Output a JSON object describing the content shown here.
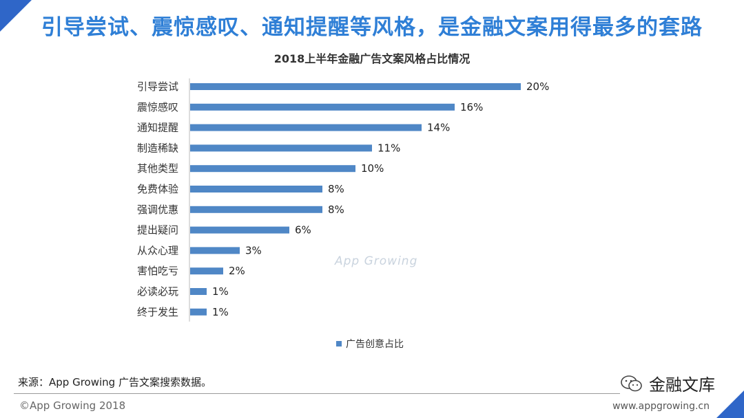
{
  "headline": "引导尝试、震惊感叹、通知提醒等风格，是金融文案用得最多的套路",
  "watermark": "App Growing",
  "source_note": "来源：App Growing 广告文案搜索数据。",
  "footer": {
    "copyright": "©App Growing 2018",
    "url": "www.appgrowing.cn"
  },
  "brand": {
    "name": "金融文库",
    "icon": "wechat-icon"
  },
  "colors": {
    "accent": "#2f66c8",
    "bar": "#4f87c6",
    "headline": "#2f7fd6"
  },
  "chart_data": {
    "type": "bar",
    "orientation": "horizontal",
    "title": "2018上半年金融广告文案风格占比情况",
    "categories": [
      "引导尝试",
      "震惊感叹",
      "通知提醒",
      "制造稀缺",
      "其他类型",
      "免费体验",
      "强调优惠",
      "提出疑问",
      "从众心理",
      "害怕吃亏",
      "必读必玩",
      "终于发生"
    ],
    "series": [
      {
        "name": "广告创意占比",
        "values": [
          20,
          16,
          14,
          11,
          10,
          8,
          8,
          6,
          3,
          2,
          1,
          1
        ]
      }
    ],
    "value_labels": [
      "20%",
      "16%",
      "14%",
      "11%",
      "10%",
      "8%",
      "8%",
      "6%",
      "3%",
      "2%",
      "1%",
      "1%"
    ],
    "unit": "%",
    "xlim": [
      0,
      20
    ],
    "legend_position": "bottom",
    "grid": false
  }
}
